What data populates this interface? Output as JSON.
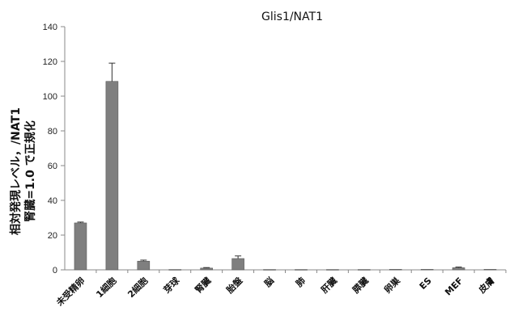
{
  "chart_data": {
    "type": "bar",
    "title": "Glis1/NAT1",
    "ylabel_line1": "相対発現レベル，/NAT1",
    "ylabel_line2": "腎臓=1.0 で正規化",
    "xlabel": "",
    "ylim": [
      0,
      140
    ],
    "yticks": [
      0,
      20,
      40,
      60,
      80,
      100,
      120,
      140
    ],
    "grid": false,
    "categories": [
      "未受精卵",
      "1細胞",
      "2細胞",
      "芽球",
      "腎臓",
      "胎盤",
      "脳",
      "肺",
      "肝臓",
      "膵臓",
      "卵巣",
      "ES",
      "MEF",
      "皮膚"
    ],
    "values": [
      27,
      108.5,
      5,
      0.2,
      1,
      6.5,
      0.2,
      0.2,
      0.2,
      0.2,
      0.3,
      0.3,
      1.2,
      0.3
    ],
    "errors": [
      0.5,
      10.5,
      0.6,
      0.1,
      0.3,
      1.5,
      0.1,
      0.1,
      0.1,
      0.1,
      0.1,
      0.1,
      0.4,
      0.1
    ],
    "colors": {
      "bar": "#7f7f7f",
      "bar_stroke": "#5a5a5a",
      "axis": "#888888",
      "text": "#111111"
    }
  }
}
